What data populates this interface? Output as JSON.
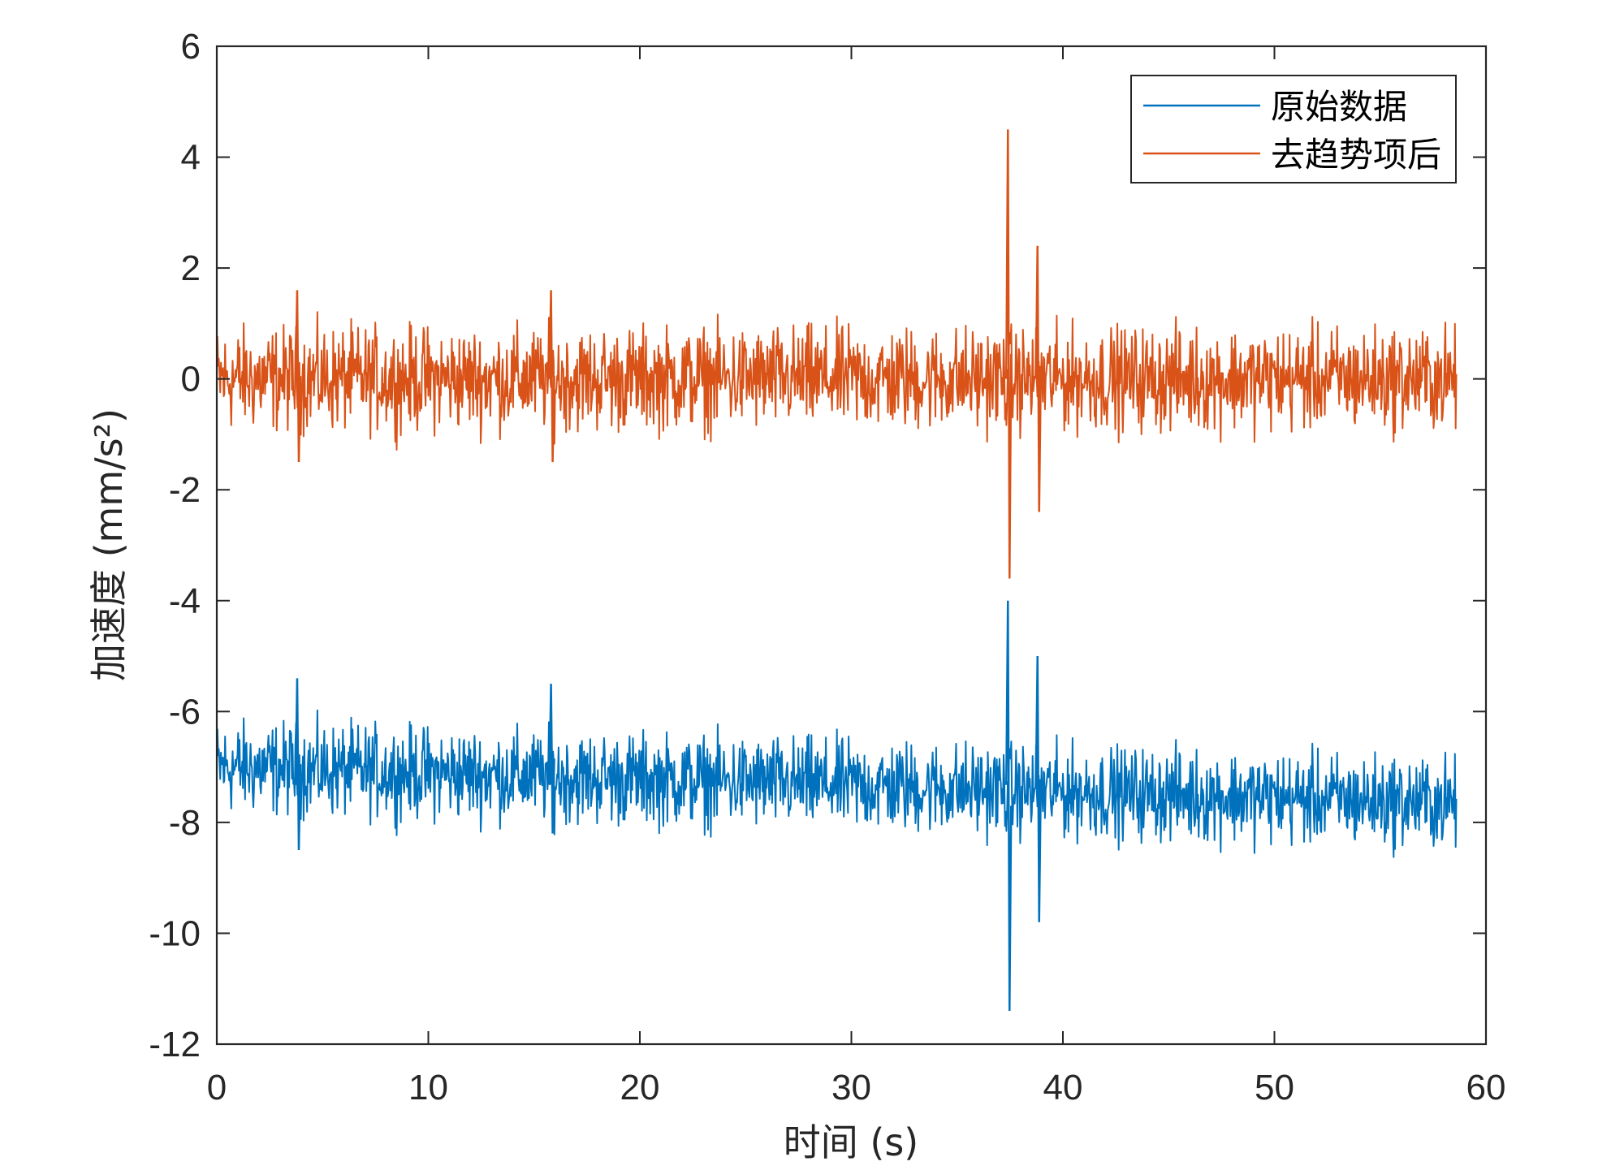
{
  "chart_data": {
    "type": "line",
    "xlabel": "时间 (s)",
    "ylabel": "加速度 (mm/s²)",
    "xlim": [
      0,
      60
    ],
    "ylim": [
      -12,
      6
    ],
    "xticks": [
      0,
      10,
      20,
      30,
      40,
      50,
      60
    ],
    "yticks": [
      -12,
      -10,
      -8,
      -6,
      -4,
      -2,
      0,
      2,
      4,
      6
    ],
    "grid": false,
    "legend_position": "top-right",
    "x_end": 58.6,
    "series": [
      {
        "name": "原始数据",
        "color": "#0072BD",
        "baseline_start": -7.0,
        "baseline_end": -7.65,
        "typical_range": [
          -8.4,
          -6.0
        ],
        "spikes": [
          {
            "x": 3.8,
            "max": -5.4,
            "min": -8.5
          },
          {
            "x": 15.8,
            "max": -5.5,
            "min": -8.2
          },
          {
            "x": 37.4,
            "max": -4.0,
            "min": -11.4
          },
          {
            "x": 38.8,
            "max": -5.0,
            "min": -9.8
          }
        ]
      },
      {
        "name": "去趋势项后",
        "color": "#D95319",
        "baseline_start": 0.0,
        "baseline_end": 0.0,
        "typical_range": [
          -1.4,
          1.3
        ],
        "spikes": [
          {
            "x": 3.8,
            "max": 1.6,
            "min": -1.5
          },
          {
            "x": 15.8,
            "max": 1.6,
            "min": -1.5
          },
          {
            "x": 37.4,
            "max": 4.5,
            "min": -3.6
          },
          {
            "x": 38.8,
            "max": 2.4,
            "min": -2.4
          }
        ]
      }
    ]
  }
}
